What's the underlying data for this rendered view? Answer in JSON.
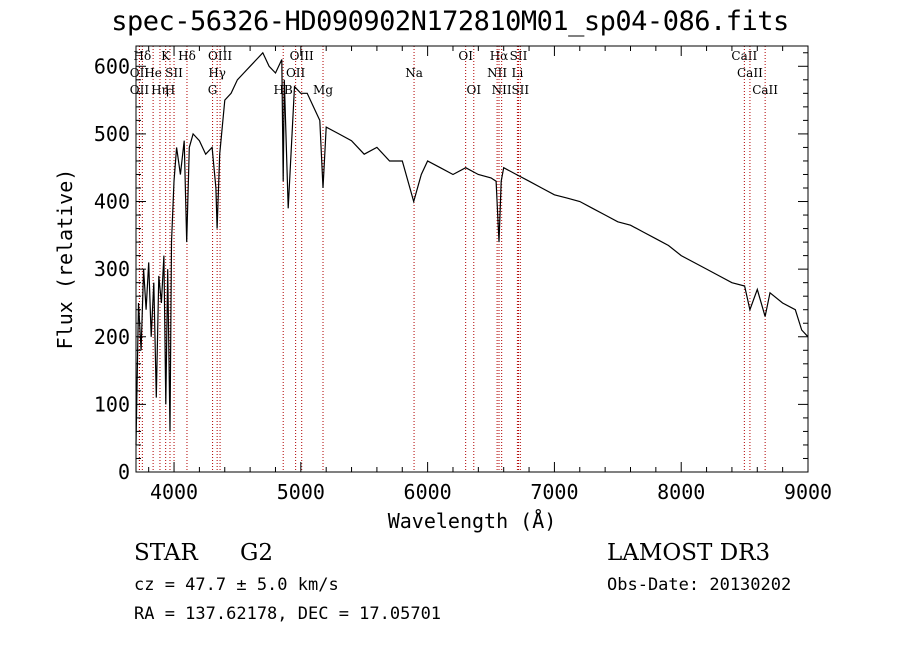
{
  "title": "spec-56326-HD090902N172810M01_sp04-086.fits",
  "chart_data": {
    "type": "line",
    "title": "spec-56326-HD090902N172810M01_sp04-086.fits",
    "xlabel": "Wavelength (Å)",
    "ylabel": "Flux (relative)",
    "xlim": [
      3700,
      9000
    ],
    "ylim": [
      0,
      630
    ],
    "xticks": [
      4000,
      5000,
      6000,
      7000,
      8000,
      9000
    ],
    "yticks": [
      0,
      100,
      200,
      300,
      400,
      500,
      600
    ],
    "series": [
      {
        "name": "spectrum",
        "x": [
          3700,
          3720,
          3740,
          3760,
          3780,
          3800,
          3820,
          3840,
          3860,
          3880,
          3900,
          3920,
          3935,
          3950,
          3968,
          3980,
          4000,
          4020,
          4050,
          4080,
          4100,
          4120,
          4150,
          4200,
          4250,
          4300,
          4330,
          4340,
          4360,
          4400,
          4450,
          4500,
          4550,
          4600,
          4650,
          4700,
          4750,
          4800,
          4850,
          4861,
          4870,
          4900,
          4950,
          5000,
          5050,
          5100,
          5150,
          5175,
          5200,
          5300,
          5400,
          5500,
          5600,
          5700,
          5800,
          5890,
          5950,
          6000,
          6100,
          6200,
          6300,
          6400,
          6500,
          6540,
          6563,
          6580,
          6600,
          6700,
          6800,
          6900,
          7000,
          7100,
          7200,
          7300,
          7400,
          7500,
          7600,
          7700,
          7800,
          7900,
          8000,
          8100,
          8200,
          8300,
          8400,
          8500,
          8542,
          8600,
          8662,
          8700,
          8800,
          8900,
          8950,
          9000
        ],
        "y": [
          40,
          250,
          180,
          300,
          240,
          310,
          200,
          280,
          110,
          290,
          250,
          320,
          100,
          300,
          60,
          340,
          430,
          480,
          440,
          490,
          340,
          480,
          500,
          490,
          470,
          480,
          420,
          360,
          470,
          550,
          560,
          580,
          590,
          600,
          610,
          620,
          600,
          590,
          610,
          430,
          580,
          390,
          570,
          560,
          560,
          540,
          520,
          420,
          510,
          500,
          490,
          470,
          480,
          460,
          460,
          400,
          440,
          460,
          450,
          440,
          450,
          440,
          435,
          430,
          340,
          430,
          450,
          440,
          430,
          420,
          410,
          405,
          400,
          390,
          380,
          370,
          365,
          355,
          345,
          335,
          320,
          310,
          300,
          290,
          280,
          275,
          240,
          270,
          230,
          265,
          250,
          240,
          210,
          200
        ]
      }
    ],
    "lines": [
      {
        "label": "Hδ",
        "x": 3750,
        "row": 0
      },
      {
        "label": "OII",
        "x": 3727,
        "row": 1
      },
      {
        "label": "OII",
        "x": 3727,
        "row": 2
      },
      {
        "label": "He",
        "x": 3835,
        "row": 1
      },
      {
        "label": "Hη",
        "x": 3889,
        "row": 2
      },
      {
        "label": "K",
        "x": 3934,
        "row": 0
      },
      {
        "label": "SII",
        "x": 4000,
        "row": 1
      },
      {
        "label": "H",
        "x": 3968,
        "row": 2
      },
      {
        "label": "Hδ",
        "x": 4102,
        "row": 0
      },
      {
        "label": "OIII",
        "x": 4363,
        "row": 0
      },
      {
        "label": "Hγ",
        "x": 4340,
        "row": 1
      },
      {
        "label": "G",
        "x": 4304,
        "row": 2
      },
      {
        "label": "HB",
        "x": 4861,
        "row": 2
      },
      {
        "label": "OIII",
        "x": 5007,
        "row": 0
      },
      {
        "label": "OII",
        "x": 4959,
        "row": 1
      },
      {
        "label": "Mg",
        "x": 5175,
        "row": 2
      },
      {
        "label": "Na",
        "x": 5893,
        "row": 1
      },
      {
        "label": "OI",
        "x": 6300,
        "row": 0
      },
      {
        "label": "OI",
        "x": 6364,
        "row": 2
      },
      {
        "label": "Hα",
        "x": 6563,
        "row": 0
      },
      {
        "label": "SII",
        "x": 6717,
        "row": 0
      },
      {
        "label": "NII",
        "x": 6548,
        "row": 1
      },
      {
        "label": "Li",
        "x": 6708,
        "row": 1
      },
      {
        "label": "NII",
        "x": 6584,
        "row": 2
      },
      {
        "label": "SII",
        "x": 6731,
        "row": 2
      },
      {
        "label": "CaII",
        "x": 8498,
        "row": 0
      },
      {
        "label": "CaII",
        "x": 8542,
        "row": 1
      },
      {
        "label": "CaII",
        "x": 8662,
        "row": 2
      }
    ],
    "line_color": "#b00000"
  },
  "info": {
    "class_label": "STAR",
    "subclass": "G2",
    "survey": "LAMOST DR3",
    "cz": "cz = 47.7 ± 5.0 km/s",
    "obs_date": "Obs-Date: 20130202",
    "coords": "RA = 137.62178, DEC =  17.05701"
  }
}
